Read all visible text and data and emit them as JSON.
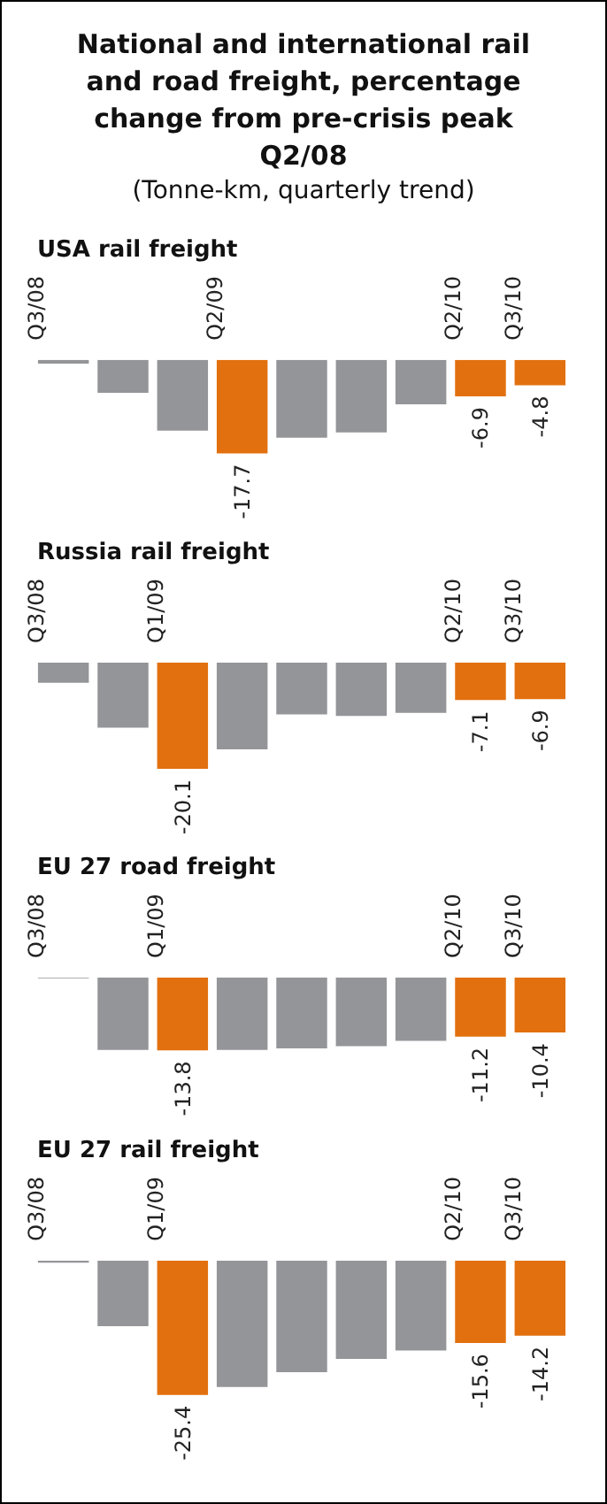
{
  "chart_data": [
    {
      "type": "other",
      "title": "National and international rail and road freight, percentage change from pre-crisis peak Q2/08",
      "subtitle": "(Tonne-km, quarterly trend)"
    },
    {
      "type": "bar",
      "title": "USA rail freight",
      "tick_labels": "x",
      "categories": [
        "Q3/08",
        null,
        null,
        "Q2/09",
        null,
        null,
        null,
        "Q2/10",
        "Q3/10"
      ],
      "values": [
        -0.7,
        -6.2,
        -13.4,
        -17.7,
        -14.7,
        -13.7,
        -8.4,
        -6.9,
        -4.8
      ],
      "colors": [
        "#949599",
        "#949599",
        "#949599",
        "#e2700f",
        "#949599",
        "#949599",
        "#949599",
        "#e2700f",
        "#e2700f"
      ],
      "value_labels": [
        null,
        null,
        null,
        "-17.7",
        null,
        null,
        null,
        "-6.9",
        "-4.8"
      ]
    },
    {
      "type": "bar",
      "title": "Russia rail freight",
      "tick_labels": "x",
      "categories": [
        "Q3/08",
        null,
        "Q1/09",
        null,
        null,
        null,
        null,
        "Q2/10",
        "Q3/10"
      ],
      "values": [
        -3.8,
        -12.3,
        -20.1,
        -16.4,
        -9.8,
        -10.1,
        -9.5,
        -7.1,
        -6.9
      ],
      "colors": [
        "#949599",
        "#949599",
        "#e2700f",
        "#949599",
        "#949599",
        "#949599",
        "#949599",
        "#e2700f",
        "#e2700f"
      ],
      "value_labels": [
        null,
        null,
        "-20.1",
        null,
        null,
        null,
        null,
        "-7.1",
        "-6.9"
      ]
    },
    {
      "type": "bar",
      "title": "EU 27 road freight",
      "tick_labels": "x",
      "categories": [
        "Q3/08",
        null,
        "Q1/09",
        null,
        null,
        null,
        null,
        "Q2/10",
        "Q3/10"
      ],
      "values": [
        -0.1,
        -13.7,
        -13.8,
        -13.7,
        -13.4,
        -13.0,
        -12.0,
        -11.2,
        -10.4
      ],
      "colors": [
        "#949599",
        "#949599",
        "#e2700f",
        "#949599",
        "#949599",
        "#949599",
        "#949599",
        "#e2700f",
        "#e2700f"
      ],
      "value_labels": [
        null,
        null,
        "-13.8",
        null,
        null,
        null,
        null,
        "-11.2",
        "-10.4"
      ]
    },
    {
      "type": "bar",
      "title": "EU 27 rail freight",
      "tick_labels": "x",
      "categories": [
        "Q3/08",
        null,
        "Q1/09",
        null,
        null,
        null,
        null,
        "Q2/10",
        "Q3/10"
      ],
      "values": [
        -0.4,
        -12.4,
        -25.4,
        -23.9,
        -21.1,
        -18.6,
        -17.0,
        -15.6,
        -14.2
      ],
      "colors": [
        "#949599",
        "#949599",
        "#e2700f",
        "#949599",
        "#949599",
        "#949599",
        "#949599",
        "#e2700f",
        "#e2700f"
      ],
      "value_labels": [
        null,
        null,
        "-25.4",
        null,
        null,
        null,
        null,
        "-15.6",
        "-14.2"
      ]
    }
  ]
}
